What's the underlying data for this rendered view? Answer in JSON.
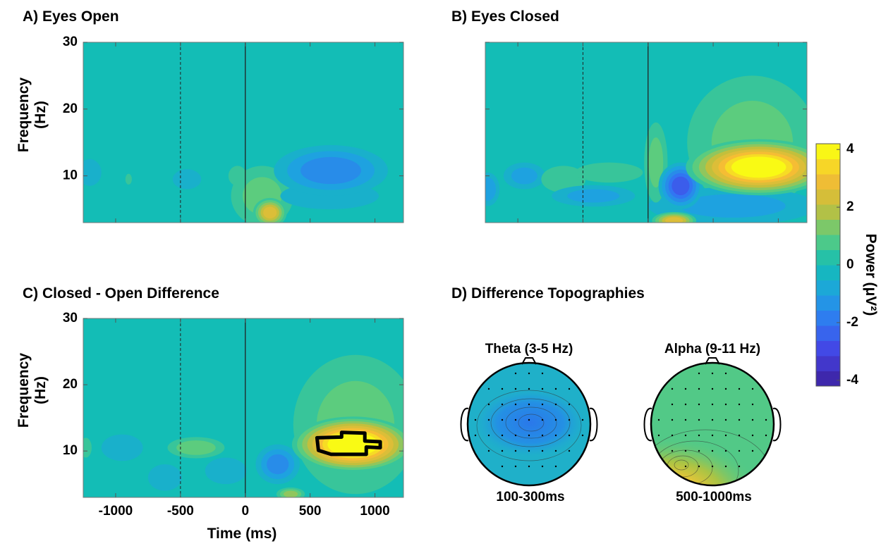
{
  "chart_data": [
    {
      "type": "heatmap",
      "title": "A) Eyes Open",
      "ylabel": [
        "Frequency",
        "(Hz)"
      ],
      "xlim": [
        -1250,
        1220
      ],
      "ylim": [
        3,
        30
      ],
      "xticks": [
        -1000,
        -500,
        0,
        500,
        1000
      ],
      "yticks": [
        10,
        20,
        30
      ],
      "show_xtick_labels": false,
      "show_ytick_labels": true,
      "background_value": 0,
      "vlines": [
        {
          "value": -500,
          "style": "dashed"
        },
        {
          "value": 0,
          "style": "solid"
        }
      ],
      "blobs": [
        {
          "x": -1200,
          "y": 10.5,
          "value": -0.8,
          "rx": 90,
          "ry": 2
        },
        {
          "x": -900,
          "y": 9.5,
          "value": 0.5,
          "rx": 25,
          "ry": 0.8
        },
        {
          "x": -450,
          "y": 9.5,
          "value": -0.6,
          "rx": 110,
          "ry": 1.5
        },
        {
          "x": -60,
          "y": 10,
          "value": 0.6,
          "rx": 70,
          "ry": 1.5
        },
        {
          "x": 130,
          "y": 7,
          "value": 1,
          "rx": 240,
          "ry": 4.5
        },
        {
          "x": 190,
          "y": 4.5,
          "value": 2.5,
          "rx": 130,
          "ry": 2.2
        },
        {
          "x": 650,
          "y": 7,
          "value": -0.8,
          "rx": 380,
          "ry": 2
        },
        {
          "x": 660,
          "y": 10.8,
          "value": -1.6,
          "rx": 440,
          "ry": 3.8
        }
      ]
    },
    {
      "type": "heatmap",
      "title": "B) Eyes Closed",
      "xlim": [
        -1250,
        1220
      ],
      "ylim": [
        3,
        30
      ],
      "xticks": [
        -1000,
        -500,
        0,
        500,
        1000
      ],
      "yticks": [
        10,
        20,
        30
      ],
      "show_xtick_labels": false,
      "show_ytick_labels": false,
      "background_value": 0,
      "vlines": [
        {
          "value": -500,
          "style": "dashed"
        },
        {
          "value": 0,
          "style": "solid"
        }
      ],
      "blobs": [
        {
          "x": 800,
          "y": 15,
          "value": 1,
          "rx": 500,
          "ry": 10
        },
        {
          "x": 650,
          "y": 5.5,
          "value": -1,
          "rx": 650,
          "ry": 2.8
        },
        {
          "x": -1230,
          "y": 8,
          "value": -1.2,
          "rx": 90,
          "ry": 2.5
        },
        {
          "x": -950,
          "y": 10,
          "value": -1,
          "rx": 160,
          "ry": 2
        },
        {
          "x": -650,
          "y": 9.5,
          "value": 0.8,
          "rx": 170,
          "ry": 2
        },
        {
          "x": -300,
          "y": 10.5,
          "value": 0.8,
          "rx": 260,
          "ry": 1.5
        },
        {
          "x": -420,
          "y": 7,
          "value": -1,
          "rx": 320,
          "ry": 1.6
        },
        {
          "x": 60,
          "y": 12,
          "value": 1,
          "rx": 90,
          "ry": 6
        },
        {
          "x": 250,
          "y": 8.5,
          "value": -2.5,
          "rx": 170,
          "ry": 3.5
        },
        {
          "x": 200,
          "y": 3.3,
          "value": 2.5,
          "rx": 170,
          "ry": 1.3
        },
        {
          "x": 850,
          "y": 11.3,
          "value": 4.2,
          "rx": 560,
          "ry": 4.2
        }
      ]
    },
    {
      "type": "heatmap",
      "title": "C)  Closed - Open Difference",
      "ylabel": [
        "Frequency",
        "(Hz)"
      ],
      "xlabel": "Time (ms)",
      "xlim": [
        -1250,
        1220
      ],
      "ylim": [
        3,
        30
      ],
      "xticks": [
        -1000,
        -500,
        0,
        500,
        1000
      ],
      "yticks": [
        10,
        20,
        30
      ],
      "show_xtick_labels": true,
      "show_ytick_labels": true,
      "background_value": 0,
      "vlines": [
        {
          "value": -500,
          "style": "dashed"
        },
        {
          "value": 0,
          "style": "solid"
        }
      ],
      "blobs": [
        {
          "x": 850,
          "y": 14,
          "value": 1,
          "rx": 480,
          "ry": 10.5
        },
        {
          "x": -1230,
          "y": 10.5,
          "value": 0.8,
          "rx": 45,
          "ry": 1.5
        },
        {
          "x": -950,
          "y": 10.5,
          "value": -0.8,
          "rx": 160,
          "ry": 2
        },
        {
          "x": -620,
          "y": 6,
          "value": -0.7,
          "rx": 130,
          "ry": 2
        },
        {
          "x": -380,
          "y": 10.5,
          "value": 1.2,
          "rx": 220,
          "ry": 1.6
        },
        {
          "x": -150,
          "y": 7,
          "value": -0.8,
          "rx": 160,
          "ry": 2
        },
        {
          "x": 250,
          "y": 8,
          "value": -1.5,
          "rx": 170,
          "ry": 3
        },
        {
          "x": 350,
          "y": 3.5,
          "value": 1.5,
          "rx": 110,
          "ry": 1
        },
        {
          "x": 830,
          "y": 11,
          "value": 4.5,
          "rx": 470,
          "ry": 4.2
        }
      ],
      "outline": {
        "x": [
          553,
          564,
          662,
          933,
          933,
          1041,
          1041,
          922,
          922,
          743,
          743
        ],
        "y": [
          12.0,
          10.1,
          9.5,
          9.5,
          10.6,
          10.5,
          11.4,
          11.5,
          12.7,
          12.8,
          12.1
        ]
      }
    },
    {
      "type": "topography",
      "title": "D) Difference Topographies",
      "maps": [
        {
          "title": "Theta (3-5 Hz)",
          "caption": "100-300ms"
        },
        {
          "title": "Alpha (9-11 Hz)",
          "caption": "500-1000ms"
        }
      ]
    },
    {
      "type": "colorbar",
      "label": "Power (μV²)",
      "clim": [
        -4.2,
        4.2
      ],
      "ticks": [
        4,
        2,
        0,
        -2,
        -4
      ],
      "colors": [
        "#3e26a8",
        "#4443e4",
        "#3176f2",
        "#1ea2e0",
        "#13bdb6",
        "#5ccc7e",
        "#c3bf3c",
        "#f5bd34",
        "#f9fa14"
      ]
    }
  ]
}
